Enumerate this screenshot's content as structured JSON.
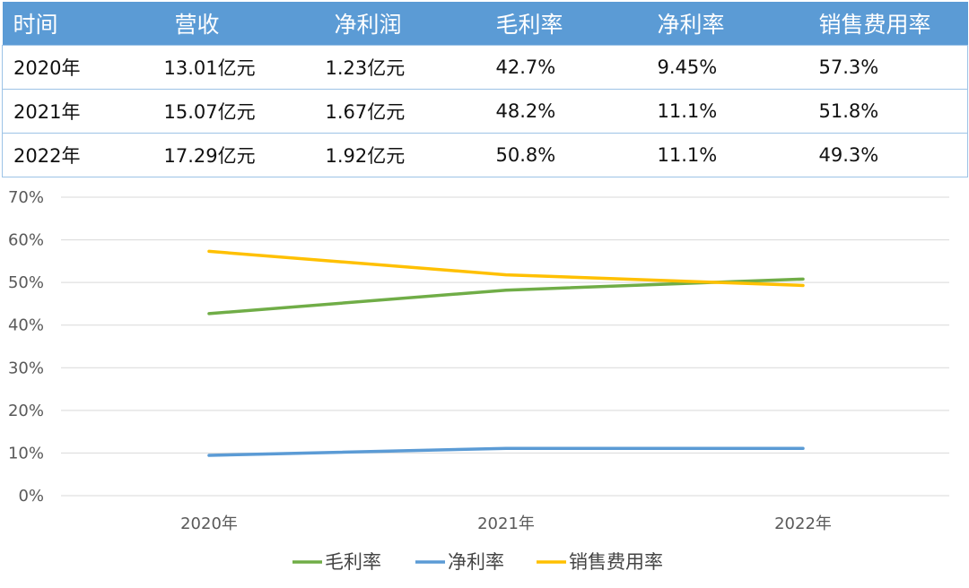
{
  "table": {
    "headers": [
      "时间",
      "营收",
      "净利润",
      "毛利率",
      "净利率",
      "销售费用率"
    ],
    "rows": [
      [
        "2020年",
        "13.01亿元",
        "1.23亿元",
        "42.7%",
        "9.45%",
        "57.3%"
      ],
      [
        "2021年",
        "15.07亿元",
        "1.67亿元",
        "48.2%",
        "11.1%",
        "51.8%"
      ],
      [
        "2022年",
        "17.29亿元",
        "1.92亿元",
        "50.8%",
        "11.1%",
        "49.3%"
      ]
    ]
  },
  "chart_data": {
    "type": "line",
    "categories": [
      "2020年",
      "2021年",
      "2022年"
    ],
    "yticks": [
      "0%",
      "10%",
      "20%",
      "30%",
      "40%",
      "50%",
      "60%",
      "70%"
    ],
    "ylim": [
      0,
      70
    ],
    "grid": true,
    "legend_position": "bottom",
    "series": [
      {
        "name": "毛利率",
        "values": [
          42.7,
          48.2,
          50.8
        ],
        "color": "#70ad47"
      },
      {
        "name": "净利率",
        "values": [
          9.45,
          11.1,
          11.1
        ],
        "color": "#5b9bd5"
      },
      {
        "name": "销售费用率",
        "values": [
          57.3,
          51.8,
          49.3
        ],
        "color": "#ffc000"
      }
    ]
  }
}
